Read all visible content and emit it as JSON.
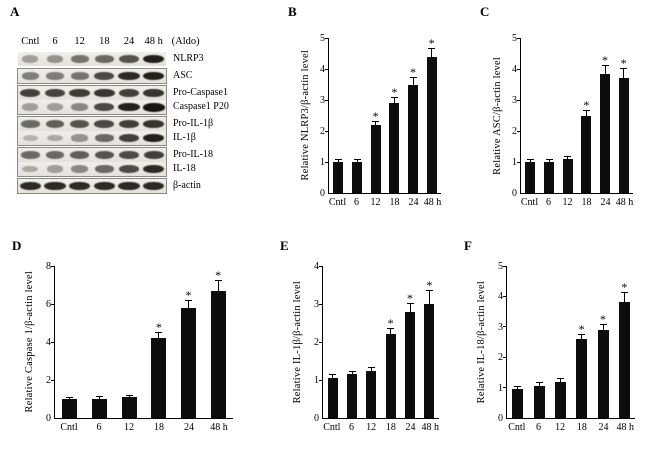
{
  "figure": {
    "background": "#ffffff",
    "bar_color": "#0d0d0d"
  },
  "panel_a": {
    "label": "A",
    "treatment_note": "(Aldo)",
    "lane_labels": [
      "Cntl",
      "6",
      "12",
      "18",
      "24",
      "48 h"
    ],
    "groups": [
      {
        "boxed": false,
        "rows": [
          0
        ]
      },
      {
        "boxed": true,
        "rows": [
          1
        ]
      },
      {
        "boxed": true,
        "rows": [
          2,
          3
        ]
      },
      {
        "boxed": true,
        "rows": [
          4,
          5
        ]
      },
      {
        "boxed": true,
        "rows": [
          6,
          7
        ]
      },
      {
        "boxed": true,
        "rows": [
          8
        ]
      }
    ],
    "rows": [
      {
        "label": "NLRP3",
        "bands": [
          0.35,
          0.4,
          0.55,
          0.6,
          0.7,
          0.95
        ]
      },
      {
        "label": "ASC",
        "bands": [
          0.5,
          0.5,
          0.55,
          0.75,
          0.9,
          0.95
        ]
      },
      {
        "label": "Pro-Caspase1",
        "bands": [
          0.8,
          0.78,
          0.82,
          0.85,
          0.8,
          0.85
        ]
      },
      {
        "label": "Caspase1 P20",
        "bands": [
          0.35,
          0.35,
          0.45,
          0.75,
          0.95,
          1.0
        ]
      },
      {
        "label": "Pro-IL-1β",
        "bands": [
          0.6,
          0.65,
          0.7,
          0.75,
          0.8,
          0.85
        ]
      },
      {
        "label": "IL-1β",
        "bands": [
          0.25,
          0.3,
          0.4,
          0.6,
          0.8,
          0.95
        ]
      },
      {
        "label": "Pro-IL-18",
        "bands": [
          0.6,
          0.6,
          0.65,
          0.7,
          0.75,
          0.8
        ]
      },
      {
        "label": "IL-18",
        "bands": [
          0.3,
          0.35,
          0.45,
          0.6,
          0.75,
          0.9
        ]
      },
      {
        "label": "β-actin",
        "bands": [
          0.9,
          0.9,
          0.9,
          0.9,
          0.9,
          0.9
        ]
      }
    ]
  },
  "chart_data": [
    {
      "type": "bar",
      "panel": "B",
      "title": "",
      "xlabel": "",
      "ylabel": "Relative NLRP3/β-actin level",
      "categories": [
        "Cntl",
        "6",
        "12",
        "18",
        "24",
        "48 h"
      ],
      "values": [
        1.0,
        1.0,
        2.2,
        2.9,
        3.5,
        4.4
      ],
      "errors": [
        0.05,
        0.05,
        0.1,
        0.15,
        0.2,
        0.25
      ],
      "significant": [
        false,
        false,
        true,
        true,
        true,
        true
      ],
      "ylim": [
        0,
        5
      ],
      "yticks": [
        0,
        1,
        2,
        3,
        4,
        5
      ],
      "grid": false,
      "legend": false
    },
    {
      "type": "bar",
      "panel": "C",
      "title": "",
      "xlabel": "",
      "ylabel": "Relative ASC/β-actin level",
      "categories": [
        "Cntl",
        "6",
        "12",
        "18",
        "24",
        "48 h"
      ],
      "values": [
        1.0,
        1.0,
        1.1,
        2.5,
        3.85,
        3.7
      ],
      "errors": [
        0.05,
        0.05,
        0.06,
        0.15,
        0.25,
        0.3
      ],
      "significant": [
        false,
        false,
        false,
        true,
        true,
        true
      ],
      "ylim": [
        0,
        5
      ],
      "yticks": [
        0,
        1,
        2,
        3,
        4,
        5
      ],
      "grid": false,
      "legend": false
    },
    {
      "type": "bar",
      "panel": "D",
      "title": "",
      "xlabel": "",
      "ylabel": "Relative Caspase 1/β-actin level",
      "categories": [
        "Cntl",
        "6",
        "12",
        "18",
        "24",
        "48 h"
      ],
      "values": [
        1.0,
        1.0,
        1.1,
        4.2,
        5.8,
        6.7
      ],
      "errors": [
        0.06,
        0.1,
        0.08,
        0.3,
        0.35,
        0.5
      ],
      "significant": [
        false,
        false,
        false,
        true,
        true,
        true
      ],
      "ylim": [
        0,
        8
      ],
      "yticks": [
        0,
        2,
        4,
        6,
        8
      ],
      "grid": false,
      "legend": false
    },
    {
      "type": "bar",
      "panel": "E",
      "title": "",
      "xlabel": "",
      "ylabel": "Relative IL-1β/β-actin level",
      "categories": [
        "Cntl",
        "6",
        "12",
        "18",
        "24",
        "48 h"
      ],
      "values": [
        1.05,
        1.15,
        1.25,
        2.2,
        2.8,
        3.0
      ],
      "errors": [
        0.07,
        0.07,
        0.07,
        0.15,
        0.2,
        0.35
      ],
      "significant": [
        false,
        false,
        false,
        true,
        true,
        true
      ],
      "ylim": [
        0,
        4
      ],
      "yticks": [
        0,
        1,
        2,
        3,
        4
      ],
      "grid": false,
      "legend": false
    },
    {
      "type": "bar",
      "panel": "F",
      "title": "",
      "xlabel": "",
      "ylabel": "Relative IL-18/β-actin level",
      "categories": [
        "Cntl",
        "6",
        "12",
        "18",
        "24",
        "48 h"
      ],
      "values": [
        0.95,
        1.05,
        1.2,
        2.6,
        2.9,
        3.8
      ],
      "errors": [
        0.07,
        0.1,
        0.07,
        0.12,
        0.15,
        0.3
      ],
      "significant": [
        false,
        false,
        false,
        true,
        true,
        true
      ],
      "ylim": [
        0,
        5
      ],
      "yticks": [
        0,
        1,
        2,
        3,
        4,
        5
      ],
      "grid": false,
      "legend": false
    }
  ]
}
